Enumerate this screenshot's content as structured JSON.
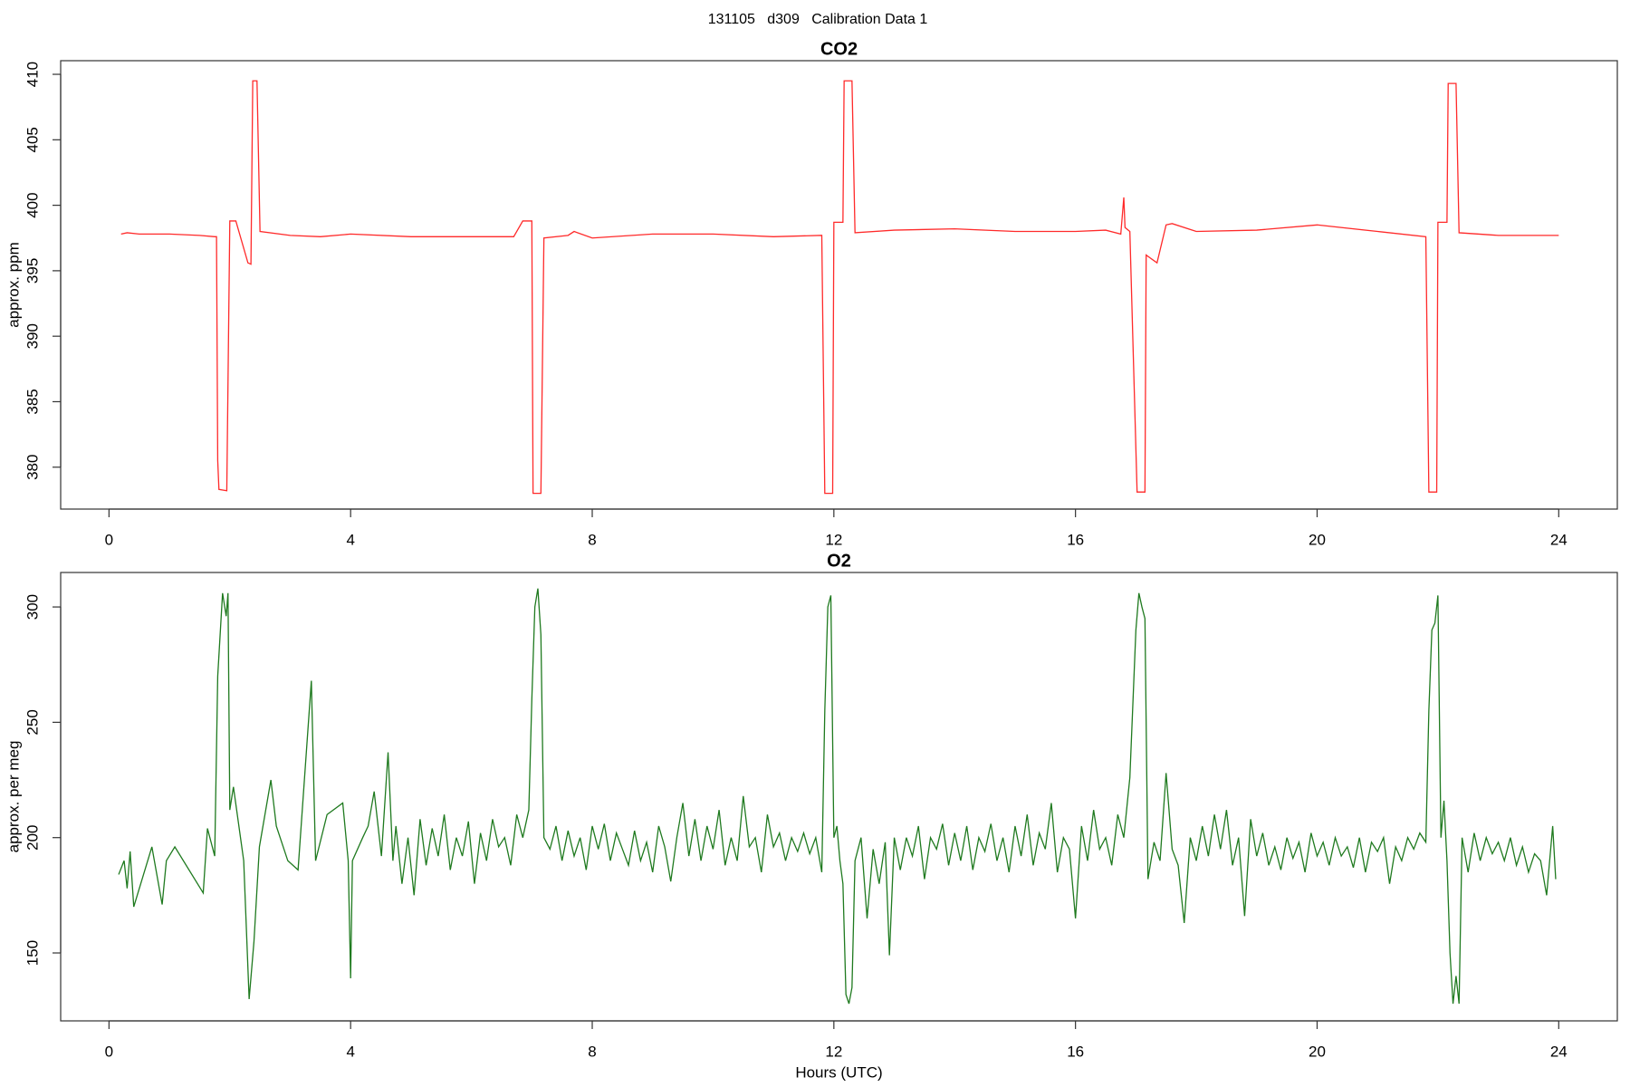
{
  "title": "131105   d309   Calibration Data 1",
  "chart_data": [
    {
      "type": "line",
      "title": "CO2",
      "ylabel": "approx. ppm",
      "x": [
        0.2,
        0.3,
        0.5,
        1.0,
        1.5,
        1.75,
        1.78,
        1.8,
        1.82,
        1.95,
        2.0,
        2.1,
        2.3,
        2.35,
        2.38,
        2.45,
        2.5,
        3,
        3.5,
        4,
        5,
        6,
        6.7,
        6.85,
        7,
        7.02,
        7.15,
        7.2,
        7.6,
        7.7,
        8,
        9,
        10,
        11,
        11.8,
        11.85,
        11.98,
        12.0,
        12.15,
        12.17,
        12.3,
        12.35,
        13,
        14,
        15,
        16,
        16.5,
        16.75,
        16.8,
        16.82,
        16.9,
        17.02,
        17.15,
        17.17,
        17.35,
        17.5,
        17.6,
        18,
        19,
        20,
        21,
        21.8,
        21.85,
        21.98,
        22.0,
        22.15,
        22.17,
        22.3,
        22.35,
        23,
        24
      ],
      "series": [
        {
          "color": "#ff2a2a",
          "values": [
            397.8,
            397.9,
            397.8,
            397.8,
            397.7,
            397.6,
            397.6,
            380.5,
            378.3,
            378.2,
            398.8,
            398.8,
            395.6,
            395.5,
            409.5,
            409.5,
            398,
            397.7,
            397.6,
            397.8,
            397.6,
            397.6,
            397.6,
            398.8,
            398.8,
            378,
            378,
            397.5,
            397.7,
            398,
            397.5,
            397.8,
            397.8,
            397.6,
            397.7,
            378.0,
            378.0,
            398.7,
            398.7,
            409.5,
            409.5,
            397.9,
            398.1,
            398.2,
            398.0,
            398.0,
            398.1,
            397.8,
            400.6,
            398.3,
            398.0,
            378.1,
            378.1,
            396.2,
            395.6,
            398.5,
            398.6,
            398.0,
            398.1,
            398.5,
            398.0,
            397.6,
            378.1,
            378.1,
            398.7,
            398.7,
            409.3,
            409.3,
            397.9,
            397.7,
            397.7
          ]
        }
      ],
      "xlim": [
        -0.8,
        24.97
      ],
      "ylim": [
        376.8,
        411.04
      ],
      "xticks": [
        0,
        4,
        8,
        12,
        16,
        20,
        24
      ],
      "yticks": [
        380,
        385,
        390,
        395,
        400,
        405,
        410
      ]
    },
    {
      "type": "line",
      "title": "O2",
      "ylabel": "approx. per meg",
      "xlabel": "Hours (UTC)",
      "x": [
        0.16,
        0.25,
        0.3,
        0.35,
        0.41,
        0.71,
        0.88,
        0.95,
        1.09,
        1.56,
        1.63,
        1.75,
        1.8,
        1.88,
        1.94,
        1.97,
        2.0,
        2.06,
        2.23,
        2.32,
        2.4,
        2.49,
        2.68,
        2.77,
        2.96,
        3.13,
        3.35,
        3.42,
        3.61,
        3.87,
        3.96,
        4.0,
        4.03,
        4.2,
        4.29,
        4.39,
        4.51,
        4.62,
        4.7,
        4.75,
        4.85,
        4.95,
        5.05,
        5.15,
        5.25,
        5.35,
        5.45,
        5.55,
        5.65,
        5.75,
        5.85,
        5.95,
        6.05,
        6.15,
        6.25,
        6.35,
        6.45,
        6.55,
        6.65,
        6.75,
        6.85,
        6.95,
        7.0,
        7.05,
        7.1,
        7.15,
        7.2,
        7.3,
        7.4,
        7.5,
        7.6,
        7.7,
        7.8,
        7.9,
        8.0,
        8.1,
        8.2,
        8.3,
        8.4,
        8.5,
        8.6,
        8.7,
        8.8,
        8.9,
        9.0,
        9.1,
        9.2,
        9.3,
        9.4,
        9.5,
        9.6,
        9.7,
        9.8,
        9.9,
        10.0,
        10.1,
        10.2,
        10.3,
        10.4,
        10.5,
        10.6,
        10.7,
        10.8,
        10.9,
        11.0,
        11.1,
        11.2,
        11.3,
        11.4,
        11.5,
        11.6,
        11.7,
        11.8,
        11.85,
        11.9,
        11.95,
        12.0,
        12.05,
        12.1,
        12.15,
        12.2,
        12.25,
        12.3,
        12.35,
        12.45,
        12.55,
        12.65,
        12.75,
        12.85,
        12.92,
        13.0,
        13.1,
        13.2,
        13.3,
        13.4,
        13.5,
        13.6,
        13.7,
        13.8,
        13.9,
        14.0,
        14.1,
        14.2,
        14.3,
        14.4,
        14.5,
        14.6,
        14.7,
        14.8,
        14.9,
        15.0,
        15.1,
        15.2,
        15.3,
        15.4,
        15.5,
        15.6,
        15.7,
        15.8,
        15.9,
        16.0,
        16.1,
        16.2,
        16.3,
        16.4,
        16.5,
        16.6,
        16.7,
        16.8,
        16.9,
        17.0,
        17.05,
        17.1,
        17.15,
        17.2,
        17.3,
        17.4,
        17.5,
        17.6,
        17.7,
        17.8,
        17.9,
        18.0,
        18.1,
        18.2,
        18.3,
        18.4,
        18.5,
        18.6,
        18.7,
        18.8,
        18.9,
        19.0,
        19.1,
        19.2,
        19.3,
        19.4,
        19.5,
        19.6,
        19.7,
        19.8,
        19.9,
        20.0,
        20.1,
        20.2,
        20.3,
        20.4,
        20.5,
        20.6,
        20.7,
        20.8,
        20.9,
        21.0,
        21.1,
        21.2,
        21.3,
        21.4,
        21.5,
        21.6,
        21.7,
        21.8,
        21.85,
        21.9,
        21.95,
        22.0,
        22.05,
        22.1,
        22.15,
        22.2,
        22.25,
        22.3,
        22.35,
        22.4,
        22.5,
        22.6,
        22.7,
        22.8,
        22.9,
        23.0,
        23.1,
        23.2,
        23.3,
        23.4,
        23.5,
        23.6,
        23.7,
        23.8,
        23.9,
        23.95
      ],
      "series": [
        {
          "color": "#1f7a1f",
          "values": [
            184,
            190,
            178,
            194,
            170,
            196,
            171,
            190,
            196,
            176,
            204,
            192,
            270,
            306,
            296,
            306,
            212,
            222,
            190,
            130,
            155,
            196,
            225,
            205,
            190,
            186,
            268,
            190,
            210,
            215,
            190,
            139,
            190,
            200,
            205,
            220,
            192,
            237,
            190,
            205,
            180,
            200,
            175,
            208,
            188,
            204,
            192,
            210,
            186,
            200,
            192,
            207,
            180,
            202,
            190,
            208,
            196,
            200,
            188,
            210,
            200,
            212,
            260,
            300,
            308,
            288,
            200,
            195,
            205,
            190,
            203,
            192,
            200,
            186,
            205,
            195,
            206,
            190,
            202,
            195,
            188,
            203,
            190,
            198,
            185,
            205,
            196,
            181,
            200,
            215,
            192,
            208,
            190,
            205,
            195,
            212,
            188,
            200,
            190,
            218,
            196,
            200,
            185,
            210,
            196,
            202,
            190,
            200,
            194,
            202,
            193,
            200,
            185,
            255,
            300,
            305,
            200,
            205,
            190,
            180,
            132,
            128,
            135,
            190,
            200,
            165,
            195,
            180,
            198,
            149,
            200,
            186,
            200,
            192,
            205,
            182,
            200,
            195,
            206,
            188,
            202,
            190,
            205,
            186,
            200,
            194,
            206,
            190,
            200,
            185,
            205,
            192,
            210,
            188,
            202,
            195,
            215,
            185,
            200,
            195,
            165,
            205,
            190,
            212,
            195,
            200,
            188,
            210,
            200,
            226,
            290,
            306,
            300,
            295,
            182,
            198,
            190,
            228,
            195,
            188,
            163,
            200,
            190,
            205,
            192,
            210,
            195,
            212,
            188,
            200,
            166,
            208,
            192,
            202,
            188,
            196,
            186,
            200,
            191,
            198,
            185,
            202,
            192,
            198,
            188,
            200,
            192,
            196,
            187,
            200,
            185,
            198,
            194,
            200,
            180,
            196,
            190,
            200,
            195,
            202,
            198,
            255,
            290,
            293,
            305,
            200,
            216,
            190,
            150,
            128,
            140,
            128,
            200,
            185,
            202,
            190,
            200,
            193,
            198,
            190,
            200,
            188,
            196,
            185,
            193,
            190,
            175,
            205,
            182
          ]
        }
      ],
      "xlim": [
        -0.8,
        24.97
      ],
      "ylim": [
        120.55,
        314.95
      ],
      "xticks": [
        0,
        4,
        8,
        12,
        16,
        20,
        24
      ],
      "yticks": [
        150,
        200,
        250,
        300
      ]
    }
  ]
}
